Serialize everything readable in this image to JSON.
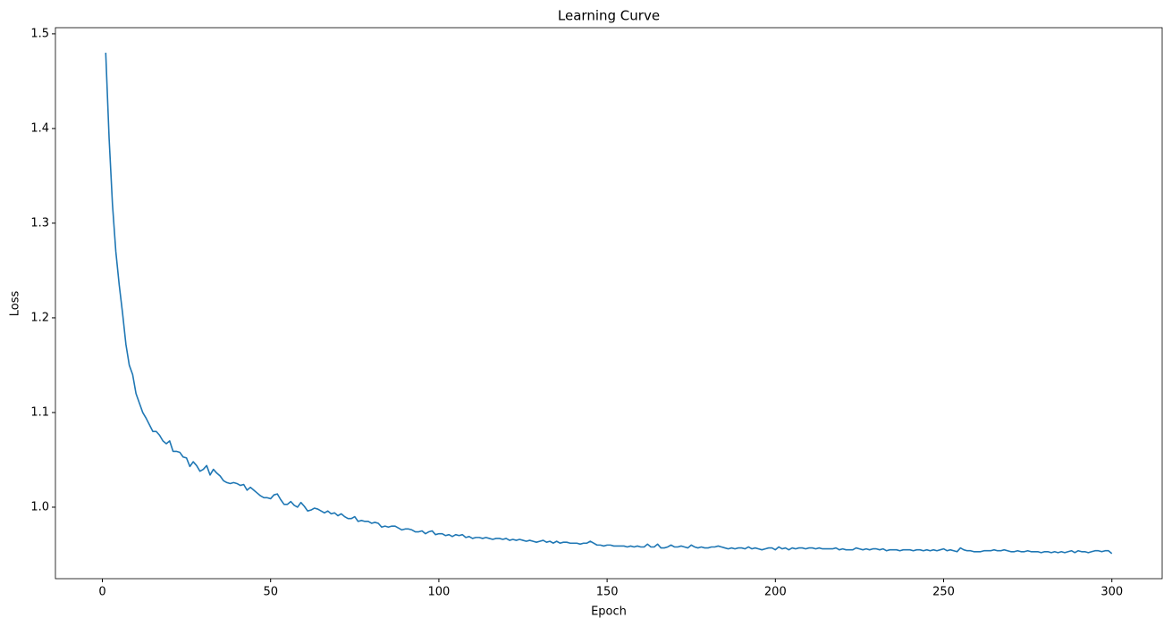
{
  "chart_data": {
    "type": "line",
    "title": "Learning Curve",
    "x_label": "Epoch",
    "y_label": "Loss",
    "color": "#1f77b4",
    "x": [
      1,
      2,
      3,
      4,
      5,
      6,
      7,
      8,
      9,
      10,
      11,
      12,
      13,
      14,
      15,
      16,
      17,
      18,
      19,
      20,
      21,
      22,
      23,
      24,
      25,
      26,
      27,
      28,
      29,
      30,
      31,
      32,
      33,
      34,
      35,
      36,
      37,
      38,
      39,
      40,
      41,
      42,
      43,
      44,
      45,
      46,
      47,
      48,
      49,
      50,
      51,
      52,
      53,
      54,
      55,
      56,
      57,
      58,
      59,
      60,
      61,
      62,
      63,
      64,
      65,
      66,
      67,
      68,
      69,
      70,
      71,
      72,
      73,
      74,
      75,
      76,
      77,
      78,
      79,
      80,
      81,
      82,
      83,
      84,
      85,
      86,
      87,
      88,
      89,
      90,
      91,
      92,
      93,
      94,
      95,
      96,
      97,
      98,
      99,
      100,
      101,
      102,
      103,
      104,
      105,
      106,
      107,
      108,
      109,
      110,
      111,
      112,
      113,
      114,
      115,
      116,
      117,
      118,
      119,
      120,
      121,
      122,
      123,
      124,
      125,
      126,
      127,
      128,
      129,
      130,
      131,
      132,
      133,
      134,
      135,
      136,
      137,
      138,
      139,
      140,
      141,
      142,
      143,
      144,
      145,
      146,
      147,
      148,
      149,
      150,
      151,
      152,
      153,
      154,
      155,
      156,
      157,
      158,
      159,
      160,
      161,
      162,
      163,
      164,
      165,
      166,
      167,
      168,
      169,
      170,
      171,
      172,
      173,
      174,
      175,
      176,
      177,
      178,
      179,
      180,
      181,
      182,
      183,
      184,
      185,
      186,
      187,
      188,
      189,
      190,
      191,
      192,
      193,
      194,
      195,
      196,
      197,
      198,
      199,
      200,
      201,
      202,
      203,
      204,
      205,
      206,
      207,
      208,
      209,
      210,
      211,
      212,
      213,
      214,
      215,
      216,
      217,
      218,
      219,
      220,
      221,
      222,
      223,
      224,
      225,
      226,
      227,
      228,
      229,
      230,
      231,
      232,
      233,
      234,
      235,
      236,
      237,
      238,
      239,
      240,
      241,
      242,
      243,
      244,
      245,
      246,
      247,
      248,
      249,
      250,
      251,
      252,
      253,
      254,
      255,
      256,
      257,
      258,
      259,
      260,
      261,
      262,
      263,
      264,
      265,
      266,
      267,
      268,
      269,
      270,
      271,
      272,
      273,
      274,
      275,
      276,
      277,
      278,
      279,
      280,
      281,
      282,
      283,
      284,
      285,
      286,
      287,
      288,
      289,
      290,
      291,
      292,
      293,
      294,
      295,
      296,
      297,
      298,
      299,
      300
    ],
    "values": [
      1.48,
      1.39,
      1.32,
      1.27,
      1.235,
      1.205,
      1.172,
      1.15,
      1.14,
      1.12,
      1.11,
      1.1,
      1.094,
      1.087,
      1.08,
      1.08,
      1.076,
      1.07,
      1.067,
      1.07,
      1.059,
      1.059,
      1.058,
      1.053,
      1.052,
      1.043,
      1.048,
      1.044,
      1.038,
      1.04,
      1.044,
      1.034,
      1.04,
      1.036,
      1.033,
      1.028,
      1.026,
      1.025,
      1.026,
      1.025,
      1.023,
      1.024,
      1.018,
      1.021,
      1.018,
      1.015,
      1.012,
      1.01,
      1.01,
      1.009,
      1.013,
      1.014,
      1.008,
      1.003,
      1.003,
      1.006,
      1.002,
      1.0,
      1.005,
      1.001,
      0.996,
      0.997,
      0.999,
      0.998,
      0.996,
      0.994,
      0.996,
      0.993,
      0.994,
      0.991,
      0.993,
      0.99,
      0.988,
      0.988,
      0.99,
      0.985,
      0.986,
      0.985,
      0.985,
      0.983,
      0.984,
      0.983,
      0.979,
      0.98,
      0.979,
      0.98,
      0.98,
      0.978,
      0.976,
      0.977,
      0.977,
      0.976,
      0.974,
      0.974,
      0.975,
      0.972,
      0.974,
      0.975,
      0.971,
      0.972,
      0.972,
      0.97,
      0.971,
      0.969,
      0.971,
      0.97,
      0.971,
      0.968,
      0.969,
      0.967,
      0.968,
      0.968,
      0.967,
      0.968,
      0.967,
      0.966,
      0.967,
      0.967,
      0.966,
      0.967,
      0.965,
      0.966,
      0.965,
      0.966,
      0.965,
      0.964,
      0.965,
      0.964,
      0.963,
      0.964,
      0.965,
      0.963,
      0.964,
      0.962,
      0.964,
      0.962,
      0.963,
      0.963,
      0.962,
      0.962,
      0.962,
      0.961,
      0.962,
      0.962,
      0.964,
      0.962,
      0.96,
      0.96,
      0.959,
      0.96,
      0.96,
      0.959,
      0.959,
      0.959,
      0.959,
      0.958,
      0.959,
      0.958,
      0.959,
      0.958,
      0.958,
      0.961,
      0.958,
      0.958,
      0.961,
      0.957,
      0.957,
      0.958,
      0.96,
      0.958,
      0.958,
      0.959,
      0.958,
      0.957,
      0.96,
      0.958,
      0.957,
      0.958,
      0.957,
      0.957,
      0.958,
      0.958,
      0.959,
      0.958,
      0.957,
      0.956,
      0.957,
      0.956,
      0.957,
      0.957,
      0.956,
      0.958,
      0.956,
      0.957,
      0.956,
      0.955,
      0.956,
      0.957,
      0.957,
      0.955,
      0.958,
      0.956,
      0.957,
      0.955,
      0.957,
      0.956,
      0.957,
      0.957,
      0.956,
      0.957,
      0.957,
      0.956,
      0.957,
      0.956,
      0.956,
      0.956,
      0.956,
      0.957,
      0.955,
      0.956,
      0.955,
      0.955,
      0.955,
      0.957,
      0.956,
      0.955,
      0.956,
      0.955,
      0.956,
      0.956,
      0.955,
      0.956,
      0.954,
      0.955,
      0.955,
      0.955,
      0.954,
      0.955,
      0.955,
      0.955,
      0.954,
      0.955,
      0.955,
      0.954,
      0.955,
      0.954,
      0.955,
      0.954,
      0.955,
      0.956,
      0.954,
      0.955,
      0.954,
      0.953,
      0.957,
      0.955,
      0.954,
      0.954,
      0.953,
      0.953,
      0.953,
      0.954,
      0.954,
      0.954,
      0.955,
      0.954,
      0.954,
      0.955,
      0.954,
      0.953,
      0.953,
      0.954,
      0.953,
      0.953,
      0.954,
      0.953,
      0.953,
      0.953,
      0.952,
      0.953,
      0.953,
      0.952,
      0.953,
      0.952,
      0.953,
      0.952,
      0.953,
      0.954,
      0.952,
      0.954,
      0.953,
      0.953,
      0.952,
      0.953,
      0.954,
      0.954,
      0.953,
      0.954,
      0.954,
      0.951
    ],
    "xlim": [
      -13.95,
      314.95
    ],
    "xticks": [
      0,
      50,
      100,
      150,
      200,
      250,
      300
    ],
    "ylim": [
      0.9245,
      1.5065
    ],
    "yticks": [
      {
        "value": 1,
        "label": "1.0"
      },
      1.1,
      1.2,
      1.3,
      1.4,
      1.5
    ]
  }
}
